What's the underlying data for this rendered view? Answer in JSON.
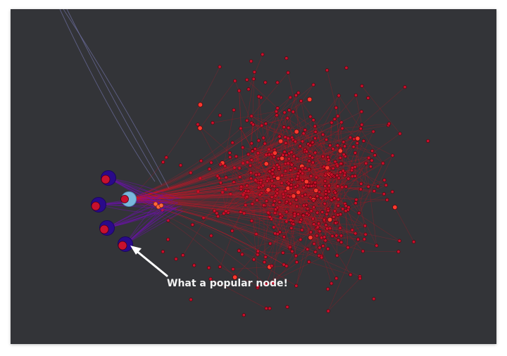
{
  "annotation": {
    "text": "What a popular node!"
  },
  "colors": {
    "background": "#333438",
    "node_fill": "#c8102e",
    "node_stroke": "#5a0008",
    "edge": "#b3121f",
    "hub_fill": "#7ab8dc",
    "outlier_fill": "#2a0a8a",
    "outlier_inner": "#c8102e",
    "annotation_text": "#f2f2f2"
  }
}
